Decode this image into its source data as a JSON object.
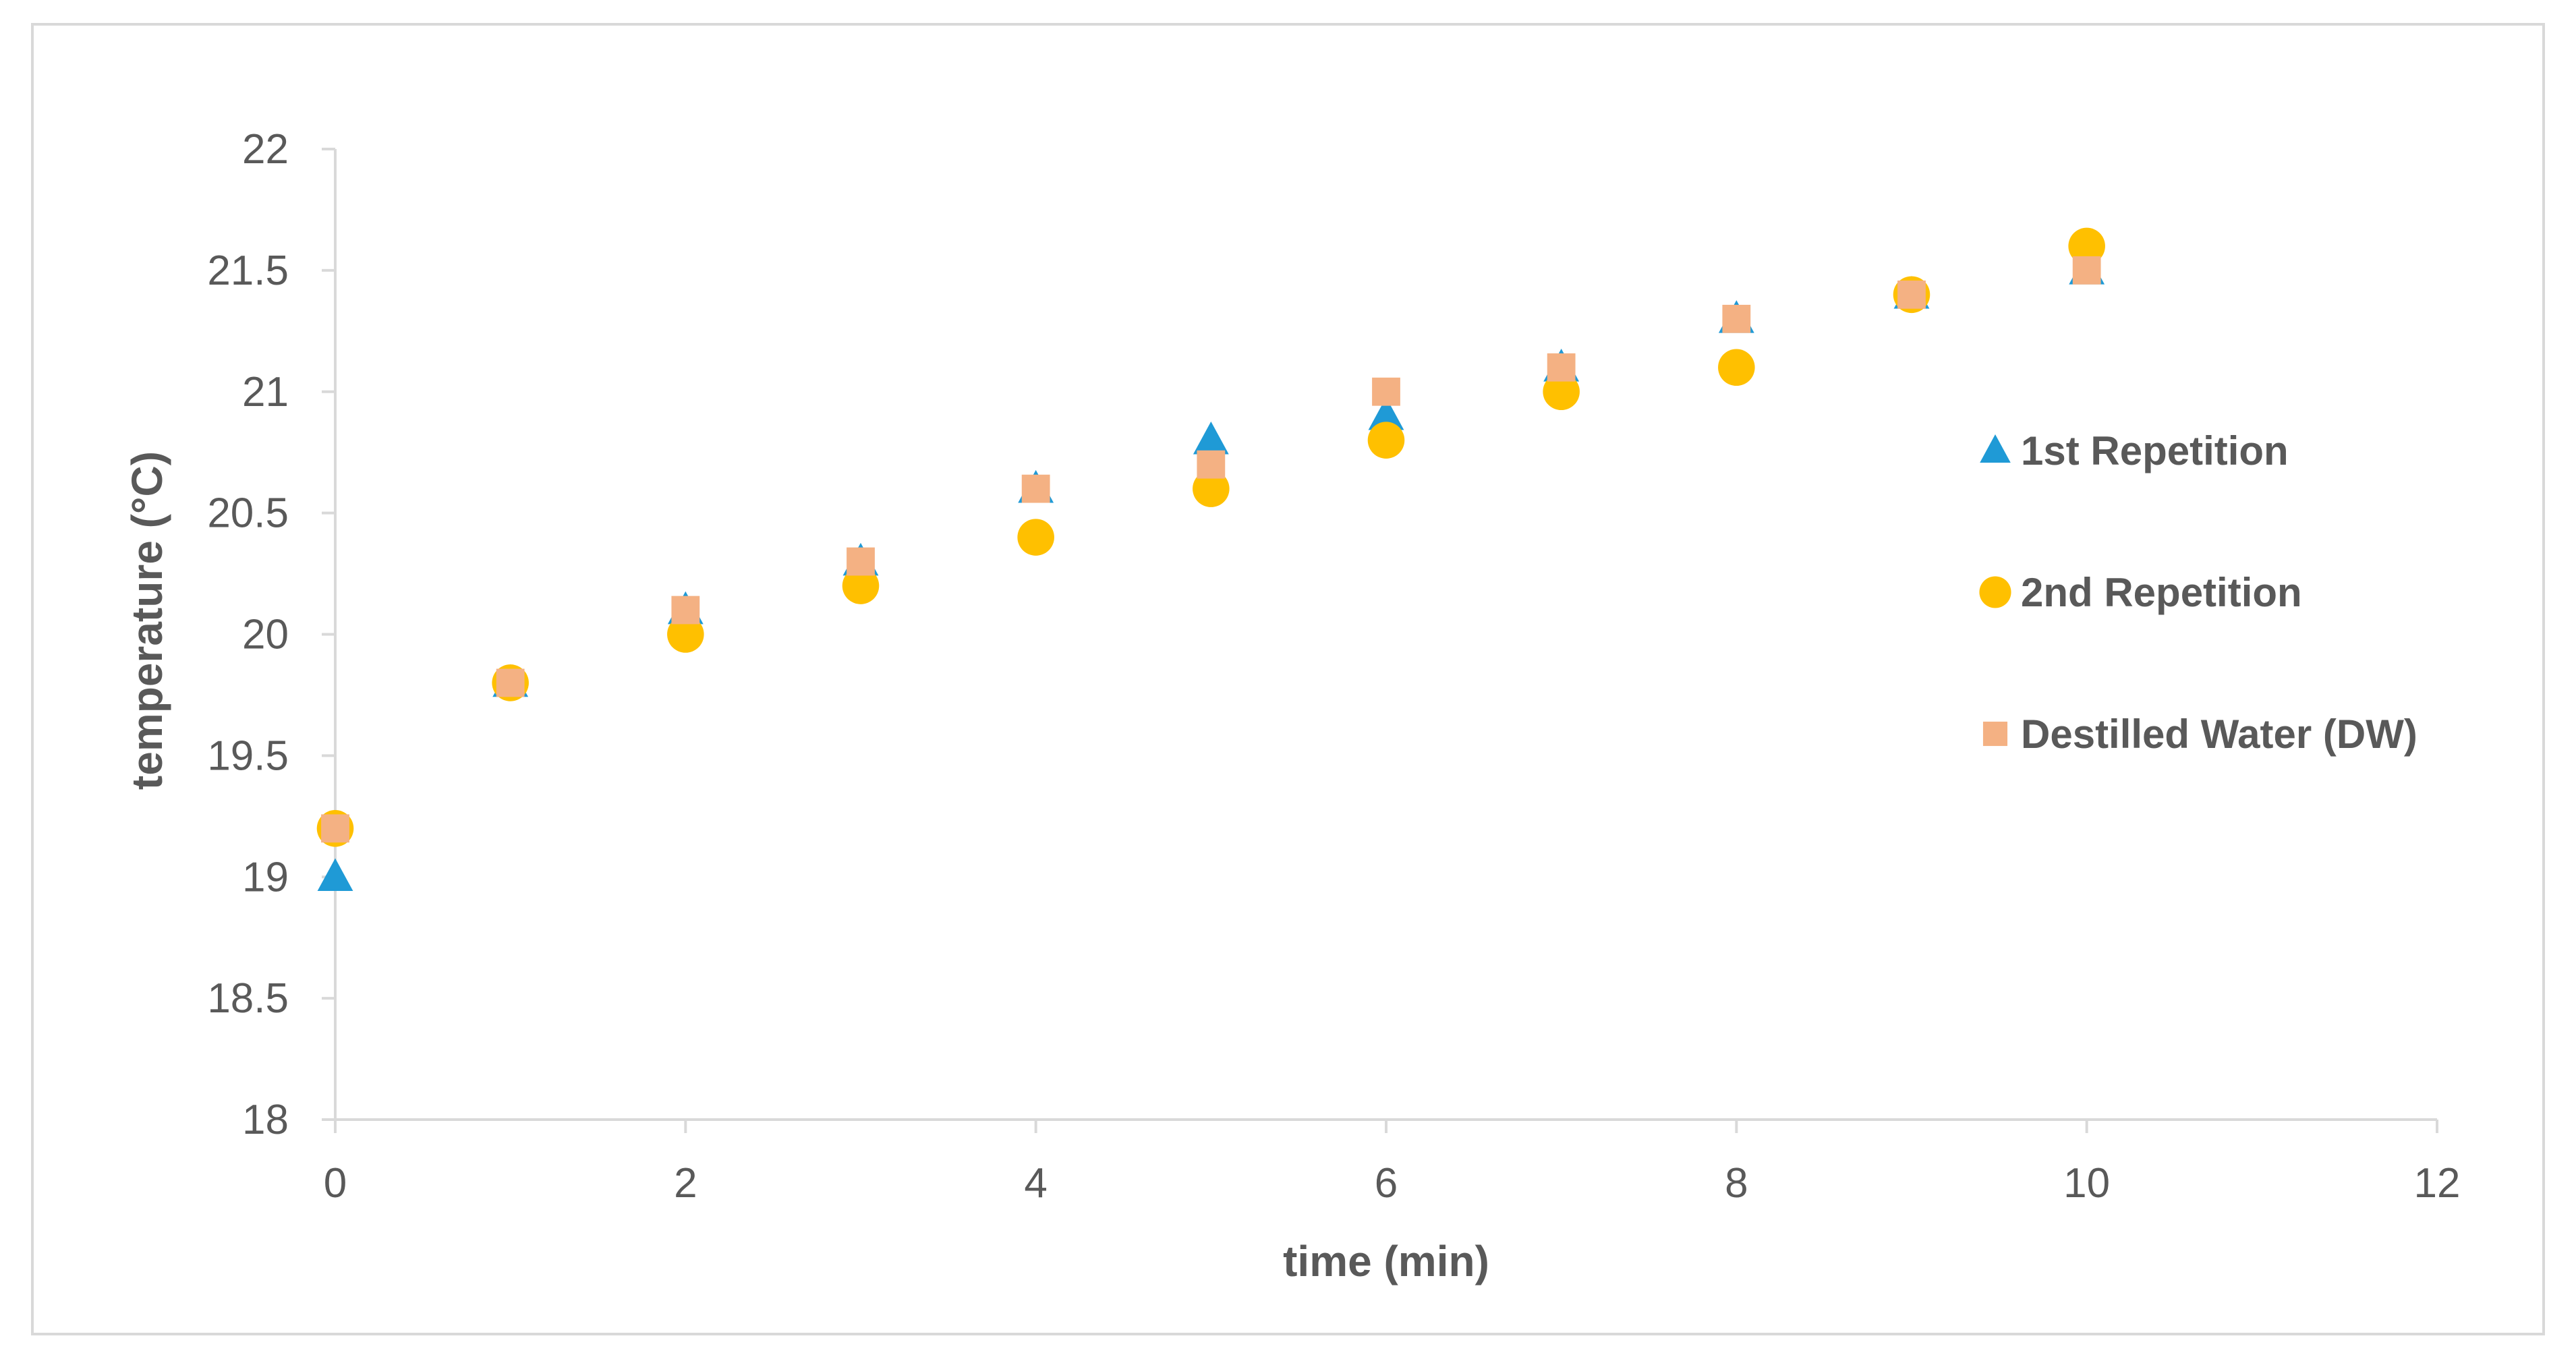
{
  "chart_data": {
    "type": "scatter",
    "title": "",
    "xlabel": "time (min)",
    "ylabel": "temperature (°C)",
    "xlim": [
      0,
      12
    ],
    "ylim": [
      18,
      22
    ],
    "x_ticks": [
      "0",
      "2",
      "4",
      "6",
      "8",
      "10",
      "12"
    ],
    "y_ticks": [
      "18",
      "18.5",
      "19",
      "19.5",
      "20",
      "20.5",
      "21",
      "21.5",
      "22"
    ],
    "grid": false,
    "legend_position": "right",
    "series": [
      {
        "name": "1st Repetition",
        "marker": "triangle",
        "color": "#1f9ad6",
        "x": [
          0,
          1,
          2,
          3,
          4,
          5,
          6,
          7,
          8,
          9,
          10
        ],
        "y": [
          19.0,
          19.8,
          20.1,
          20.3,
          20.6,
          20.8,
          20.9,
          21.1,
          21.3,
          21.4,
          21.5
        ]
      },
      {
        "name": "2nd Repetition",
        "marker": "circle",
        "color": "#ffc000",
        "x": [
          0,
          1,
          2,
          3,
          4,
          5,
          6,
          7,
          8,
          9,
          10
        ],
        "y": [
          19.2,
          19.8,
          20.0,
          20.2,
          20.4,
          20.6,
          20.8,
          21.0,
          21.1,
          21.4,
          21.6
        ]
      },
      {
        "name": "Destilled Water (DW)",
        "marker": "square",
        "color": "#f4b183",
        "x": [
          0,
          1,
          2,
          3,
          4,
          5,
          6,
          7,
          8,
          9,
          10
        ],
        "y": [
          19.2,
          19.8,
          20.1,
          20.3,
          20.6,
          20.7,
          21.0,
          21.1,
          21.3,
          21.4,
          21.5
        ]
      }
    ]
  },
  "style": {
    "axis_color": "#d9d9d9",
    "text_color": "#595959"
  }
}
